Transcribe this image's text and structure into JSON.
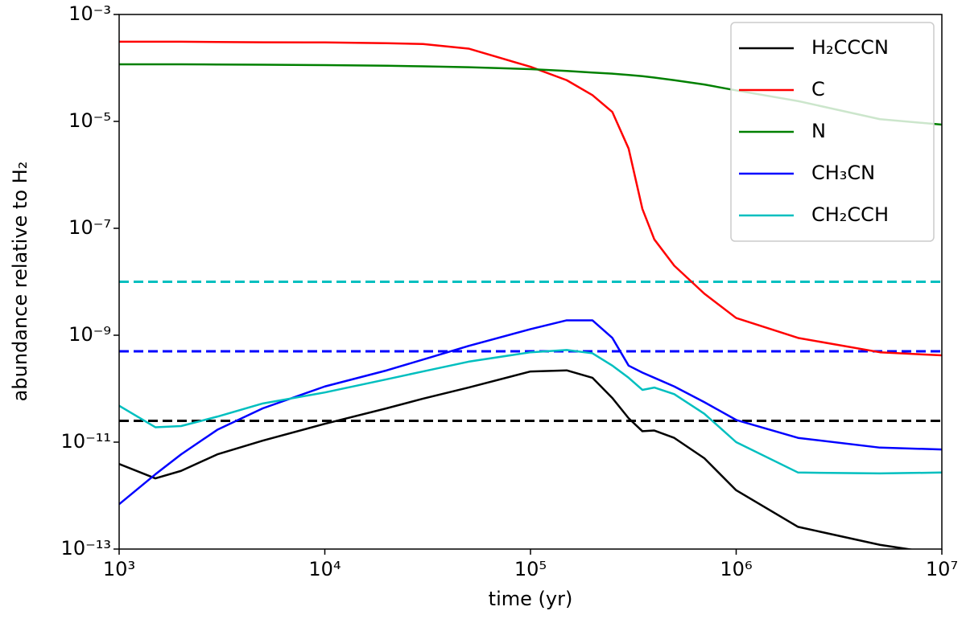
{
  "chart_data": {
    "type": "line",
    "xlabel": "time (yr)",
    "ylabel": "abundance relative to H₂",
    "xscale": "log",
    "yscale": "log",
    "xlim": [
      1000,
      10000000
    ],
    "ylim": [
      1e-13,
      0.001
    ],
    "xticks": [
      {
        "value": 1000,
        "label": "10³"
      },
      {
        "value": 10000,
        "label": "10⁴"
      },
      {
        "value": 100000,
        "label": "10⁵"
      },
      {
        "value": 1000000,
        "label": "10⁶"
      },
      {
        "value": 10000000,
        "label": "10⁷"
      }
    ],
    "yticks": [
      {
        "value": 1e-13,
        "label": "10⁻¹³"
      },
      {
        "value": 1e-11,
        "label": "10⁻¹¹"
      },
      {
        "value": 1e-09,
        "label": "10⁻⁹"
      },
      {
        "value": 1e-07,
        "label": "10⁻⁷"
      },
      {
        "value": 1e-05,
        "label": "10⁻⁵"
      },
      {
        "value": 0.001,
        "label": "10⁻³"
      }
    ],
    "legend": "upper right",
    "x": [
      1000,
      1500,
      2000,
      3000,
      5000,
      10000,
      20000,
      30000,
      50000,
      100000,
      150000,
      200000,
      250000,
      300000,
      350000,
      400000,
      500000,
      700000,
      1000000,
      2000000,
      5000000,
      10000000
    ],
    "series": [
      {
        "name": "H₂CCCN",
        "color": "#000000",
        "values": [
          3.9e-12,
          2.1e-12,
          2.9e-12,
          5.9e-12,
          1.07e-11,
          2.2e-11,
          4.3e-11,
          6.5e-11,
          1.05e-10,
          2.1e-10,
          2.2e-10,
          1.6e-10,
          6.7e-11,
          2.8e-11,
          1.6e-11,
          1.65e-11,
          1.2e-11,
          5e-12,
          1.26e-12,
          2.6e-13,
          1.2e-13,
          8e-14
        ]
      },
      {
        "name": "C",
        "color": "#ff0000",
        "values": [
          0.00031,
          0.00031,
          0.00031,
          0.000305,
          0.000302,
          0.0003,
          0.00029,
          0.00028,
          0.00023,
          0.000105,
          5.9e-05,
          3.1e-05,
          1.5e-05,
          3.1e-06,
          2.3e-07,
          6.2e-08,
          2e-08,
          6e-09,
          2.1e-09,
          8.9e-10,
          4.8e-10,
          4.2e-10
        ]
      },
      {
        "name": "N",
        "color": "#008000",
        "values": [
          0.000117,
          0.000117,
          0.000117,
          0.000116,
          0.000115,
          0.000113,
          0.00011,
          0.000107,
          0.000103,
          9.5e-05,
          8.8e-05,
          8.2e-05,
          7.8e-05,
          7.4e-05,
          7e-05,
          6.6e-05,
          5.9e-05,
          4.9e-05,
          3.8e-05,
          2.4e-05,
          1.1e-05,
          8.7e-06
        ]
      },
      {
        "name": "CH₃CN",
        "color": "#0000ff",
        "values": [
          6.9e-13,
          2.5e-12,
          5.9e-12,
          1.7e-11,
          4.3e-11,
          1.1e-10,
          2.2e-10,
          3.5e-10,
          6.3e-10,
          1.3e-09,
          1.9e-09,
          1.9e-09,
          8.9e-10,
          2.7e-10,
          2e-10,
          1.6e-10,
          1.1e-10,
          5.6e-11,
          2.6e-11,
          1.2e-11,
          7.9e-12,
          7.3e-12
        ]
      },
      {
        "name": "CH₂CCH",
        "color": "#00bfbf",
        "values": [
          4.8e-11,
          1.9e-11,
          2e-11,
          3e-11,
          5.3e-11,
          8.5e-11,
          1.5e-10,
          2.1e-10,
          3.2e-10,
          4.8e-10,
          5.3e-10,
          4.6e-10,
          2.7e-10,
          1.6e-10,
          9.5e-11,
          1.05e-10,
          7.9e-11,
          3.4e-11,
          1e-11,
          2.7e-12,
          2.6e-12,
          2.7e-12
        ]
      }
    ],
    "hlines": [
      {
        "value": 1e-08,
        "color": "#00bfbf",
        "style": "dashed"
      },
      {
        "value": 5e-10,
        "color": "#0000ff",
        "style": "dashed"
      },
      {
        "value": 2.5e-11,
        "color": "#000000",
        "style": "dashed"
      }
    ]
  }
}
